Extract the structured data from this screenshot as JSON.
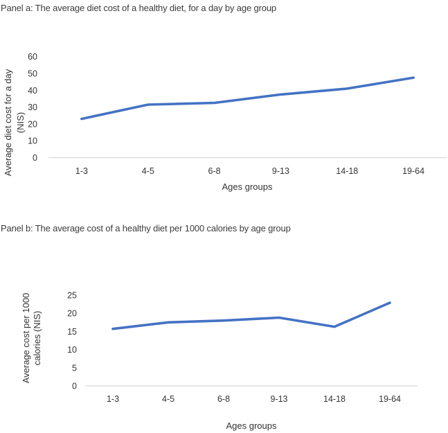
{
  "figure": {
    "panel_a_title": "Panel a: The average diet cost of a healthy diet, for a day by age group",
    "panel_b_title": "Panel b: The average cost of a healthy diet per 1000 calories by age group"
  },
  "colors": {
    "line": "#4472C4",
    "axis_line": "#D9D9D9",
    "axis_text": "#333333",
    "title_text": "#3b3b3b"
  },
  "chart_data": [
    {
      "type": "line",
      "title": "Panel a: The average diet cost of a healthy diet, for a day by age group",
      "categories": [
        "1-3",
        "4-5",
        "6-8",
        "9-13",
        "14-18",
        "19-64"
      ],
      "values": [
        23,
        31.5,
        32.5,
        37.5,
        41,
        47.5
      ],
      "xlabel": "Ages groups",
      "ylabel": "Average diet cost for a day (NIS)",
      "ylabel_lines": [
        "Average diet cost for a day",
        "(NIS)"
      ],
      "ylim": [
        0,
        60
      ],
      "ytick_step": 10,
      "yticks": [
        0,
        10,
        20,
        30,
        40,
        50,
        60
      ],
      "grid": false,
      "legend": "none",
      "line_color": "#4472C4"
    },
    {
      "type": "line",
      "title": "Panel b: The average cost of a healthy diet per 1000 calories by age group",
      "categories": [
        "1-3",
        "4-5",
        "6-8",
        "9-13",
        "14-18",
        "19-64"
      ],
      "values": [
        15.7,
        17.5,
        18,
        18.8,
        16.3,
        22.9
      ],
      "xlabel": "Ages groups",
      "ylabel": "Average cost per 1000 calories (NIS)",
      "ylabel_lines": [
        "Average cost per 1000",
        "calories (NIS)"
      ],
      "ylim": [
        0,
        25
      ],
      "ytick_step": 5,
      "yticks": [
        0,
        5,
        10,
        15,
        20,
        25
      ],
      "grid": false,
      "legend": "none",
      "line_color": "#4472C4"
    }
  ]
}
